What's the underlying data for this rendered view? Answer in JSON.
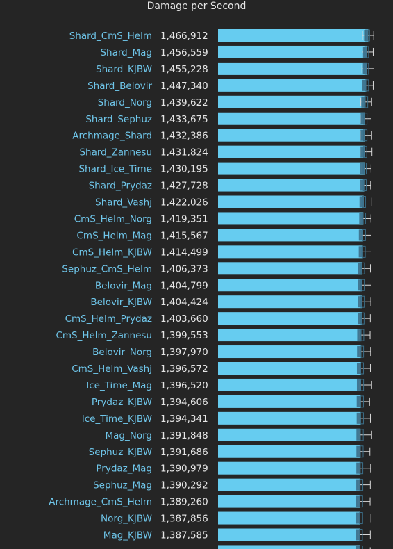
{
  "chart_data": {
    "type": "bar",
    "title": "Damage per Second",
    "xlim": [
      0,
      1600000
    ],
    "colors": {
      "bar": "#66ccf0",
      "box": "#3b6e88",
      "whisker": "#d9d9d9",
      "label": "#6fc6ea",
      "value": "#e6e6e6",
      "background": "#252525"
    },
    "rows": [
      {
        "name": "Shard_CmS_Helm",
        "value": 1466912,
        "value_label": "1,466,912",
        "min": 1410000,
        "q1": 1442000,
        "q3": 1480000,
        "max": 1520000
      },
      {
        "name": "Shard_Mag",
        "value": 1456559,
        "value_label": "1,456,559",
        "min": 1407000,
        "q1": 1432000,
        "q3": 1470000,
        "max": 1515000
      },
      {
        "name": "Shard_KJBW",
        "value": 1455228,
        "value_label": "1,455,228",
        "min": 1405000,
        "q1": 1432000,
        "q3": 1470000,
        "max": 1522000
      },
      {
        "name": "Shard_Belovir",
        "value": 1447340,
        "value_label": "1,447,340",
        "min": 1408000,
        "q1": 1436000,
        "q3": 1470000,
        "max": 1515000
      },
      {
        "name": "Shard_Norg",
        "value": 1439622,
        "value_label": "1,439,622",
        "min": 1394000,
        "q1": 1430000,
        "q3": 1462000,
        "max": 1500000
      },
      {
        "name": "Shard_Sephuz",
        "value": 1433675,
        "value_label": "1,433,675",
        "min": 1395000,
        "q1": 1422000,
        "q3": 1455000,
        "max": 1495000
      },
      {
        "name": "Archmage_Shard",
        "value": 1432386,
        "value_label": "1,432,386",
        "min": 1394000,
        "q1": 1420000,
        "q3": 1455000,
        "max": 1500000
      },
      {
        "name": "Shard_Zannesu",
        "value": 1431824,
        "value_label": "1,431,824",
        "min": 1395000,
        "q1": 1420000,
        "q3": 1452000,
        "max": 1503000
      },
      {
        "name": "Shard_Ice_Time",
        "value": 1430195,
        "value_label": "1,430,195",
        "min": 1398000,
        "q1": 1418000,
        "q3": 1447000,
        "max": 1494000
      },
      {
        "name": "Shard_Prydaz",
        "value": 1427728,
        "value_label": "1,427,728",
        "min": 1395000,
        "q1": 1418000,
        "q3": 1447000,
        "max": 1490000
      },
      {
        "name": "Shard_Vashj",
        "value": 1422026,
        "value_label": "1,422,026",
        "min": 1390000,
        "q1": 1410000,
        "q3": 1440000,
        "max": 1496000
      },
      {
        "name": "CmS_Helm_Norg",
        "value": 1419351,
        "value_label": "1,419,351",
        "min": 1392000,
        "q1": 1410000,
        "q3": 1440000,
        "max": 1493000
      },
      {
        "name": "CmS_Helm_Mag",
        "value": 1415567,
        "value_label": "1,415,567",
        "min": 1392000,
        "q1": 1408000,
        "q3": 1440000,
        "max": 1495000
      },
      {
        "name": "CmS_Helm_KJBW",
        "value": 1414499,
        "value_label": "1,414,499",
        "min": 1392000,
        "q1": 1406000,
        "q3": 1438000,
        "max": 1495000
      },
      {
        "name": "Sephuz_CmS_Helm",
        "value": 1406373,
        "value_label": "1,406,373",
        "min": 1383000,
        "q1": 1396000,
        "q3": 1430000,
        "max": 1488000
      },
      {
        "name": "Belovir_Mag",
        "value": 1404799,
        "value_label": "1,404,799",
        "min": 1385000,
        "q1": 1395000,
        "q3": 1428000,
        "max": 1495000
      },
      {
        "name": "Belovir_KJBW",
        "value": 1404424,
        "value_label": "1,404,424",
        "min": 1381000,
        "q1": 1395000,
        "q3": 1428000,
        "max": 1492000
      },
      {
        "name": "CmS_Helm_Prydaz",
        "value": 1403660,
        "value_label": "1,403,660",
        "min": 1384000,
        "q1": 1396000,
        "q3": 1426000,
        "max": 1487000
      },
      {
        "name": "CmS_Helm_Zannesu",
        "value": 1399553,
        "value_label": "1,399,553",
        "min": 1380000,
        "q1": 1392000,
        "q3": 1423000,
        "max": 1485000
      },
      {
        "name": "Belovir_Norg",
        "value": 1397970,
        "value_label": "1,397,970",
        "min": 1380000,
        "q1": 1390000,
        "q3": 1421000,
        "max": 1490000
      },
      {
        "name": "CmS_Helm_Vashj",
        "value": 1396572,
        "value_label": "1,396,572",
        "min": 1378000,
        "q1": 1390000,
        "q3": 1420000,
        "max": 1488000
      },
      {
        "name": "Ice_Time_Mag",
        "value": 1396520,
        "value_label": "1,396,520",
        "min": 1381000,
        "q1": 1388000,
        "q3": 1421000,
        "max": 1500000
      },
      {
        "name": "Prydaz_KJBW",
        "value": 1394606,
        "value_label": "1,394,606",
        "min": 1382000,
        "q1": 1387000,
        "q3": 1420000,
        "max": 1480000
      },
      {
        "name": "Ice_Time_KJBW",
        "value": 1394341,
        "value_label": "1,394,341",
        "min": 1375000,
        "q1": 1387000,
        "q3": 1420000,
        "max": 1488000
      },
      {
        "name": "Mag_Norg",
        "value": 1391848,
        "value_label": "1,391,848",
        "min": 1378000,
        "q1": 1386000,
        "q3": 1418000,
        "max": 1500000
      },
      {
        "name": "Sephuz_KJBW",
        "value": 1391686,
        "value_label": "1,391,686",
        "min": 1376000,
        "q1": 1385000,
        "q3": 1417000,
        "max": 1483000
      },
      {
        "name": "Prydaz_Mag",
        "value": 1390979,
        "value_label": "1,390,979",
        "min": 1378000,
        "q1": 1384000,
        "q3": 1414000,
        "max": 1490000
      },
      {
        "name": "Sephuz_Mag",
        "value": 1390292,
        "value_label": "1,390,292",
        "min": 1375000,
        "q1": 1384000,
        "q3": 1414000,
        "max": 1487000
      },
      {
        "name": "Archmage_CmS_Helm",
        "value": 1389260,
        "value_label": "1,389,260",
        "min": 1375000,
        "q1": 1384000,
        "q3": 1412000,
        "max": 1485000
      },
      {
        "name": "Norg_KJBW",
        "value": 1387856,
        "value_label": "1,387,856",
        "min": 1370000,
        "q1": 1382000,
        "q3": 1412000,
        "max": 1493000
      },
      {
        "name": "Mag_KJBW",
        "value": 1387585,
        "value_label": "1,387,585",
        "min": 1370000,
        "q1": 1382000,
        "q3": 1410000,
        "max": 1487000
      },
      {
        "name": "",
        "value": 1387427,
        "value_label": "",
        "min": 1372000,
        "q1": 1380000,
        "q3": 1412000,
        "max": 1486000
      }
    ]
  }
}
